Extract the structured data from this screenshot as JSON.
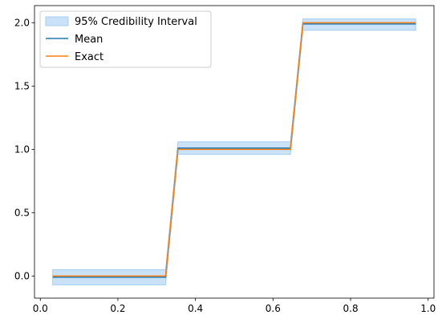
{
  "chart_data": {
    "type": "line",
    "title": "",
    "xlabel": "",
    "ylabel": "",
    "xlim": [
      -0.015,
      1.015
    ],
    "ylim": [
      -0.175,
      2.135
    ],
    "xticks": [
      0.0,
      0.2,
      0.4,
      0.6,
      0.8,
      1.0
    ],
    "xtick_labels": [
      "0.0",
      "0.2",
      "0.4",
      "0.6",
      "0.8",
      "1.0"
    ],
    "yticks": [
      0.0,
      0.5,
      1.0,
      1.5,
      2.0
    ],
    "ytick_labels": [
      "0.0",
      "0.5",
      "1.0",
      "1.5",
      "2.0"
    ],
    "grid": false,
    "legend_position": "top-left",
    "band": {
      "name": "95% Credibility Interval",
      "color": "#a6cef3",
      "x": [
        0.032,
        0.323,
        0.355,
        0.645,
        0.677,
        0.968
      ],
      "lower": [
        -0.07,
        -0.07,
        0.96,
        0.96,
        1.94,
        1.94
      ],
      "upper": [
        0.05,
        0.05,
        1.06,
        1.06,
        2.03,
        2.03
      ]
    },
    "series": [
      {
        "name": "Mean",
        "color": "#1f77b4",
        "x": [
          0.032,
          0.323,
          0.355,
          0.645,
          0.677,
          0.968
        ],
        "y": [
          -0.01,
          -0.01,
          1.01,
          1.01,
          1.99,
          1.99
        ]
      },
      {
        "name": "Exact",
        "color": "#ff7f0e",
        "x": [
          0.032,
          0.323,
          0.355,
          0.645,
          0.677,
          0.968
        ],
        "y": [
          0.0,
          0.0,
          1.0,
          1.0,
          2.0,
          2.0
        ]
      }
    ]
  }
}
